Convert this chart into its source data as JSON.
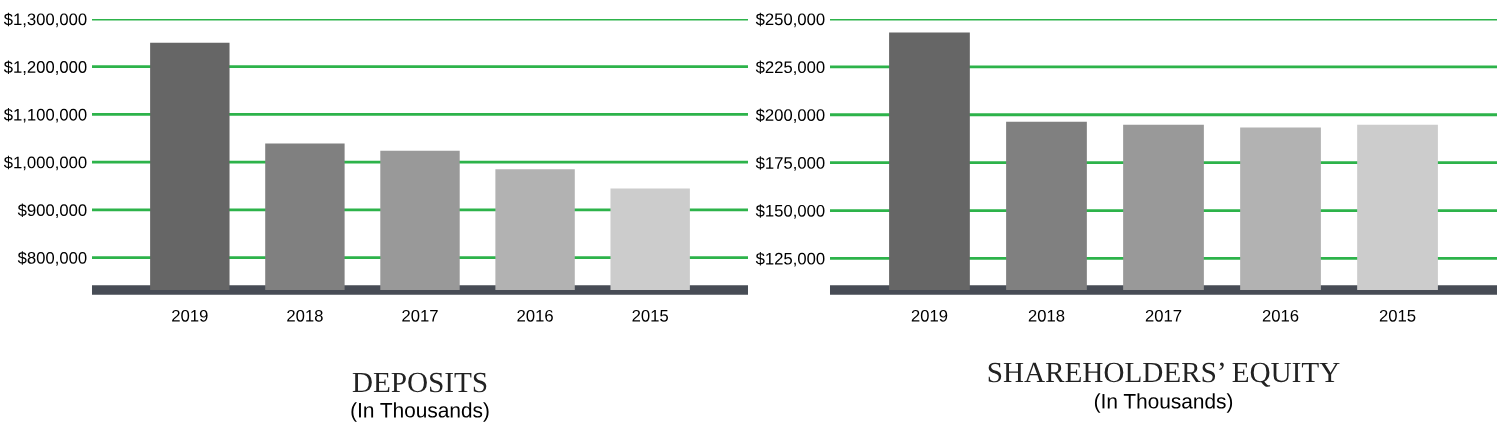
{
  "chart_data": [
    {
      "type": "bar",
      "title": "DEPOSITS",
      "subtitle": "(In Thousands)",
      "categories": [
        "2019",
        "2018",
        "2017",
        "2016",
        "2015"
      ],
      "values": [
        1250000,
        1039000,
        1024000,
        985000,
        945000
      ],
      "colors": [
        "#666666",
        "#808080",
        "#999999",
        "#b2b2b2",
        "#cccccc"
      ],
      "ylim": [
        732000,
        1300000
      ],
      "yticks": [
        {
          "value": 800000,
          "label": "$800,000"
        },
        {
          "value": 900000,
          "label": "$900,000"
        },
        {
          "value": 1000000,
          "label": "$1,000,000"
        },
        {
          "value": 1100000,
          "label": "$1,100,000"
        },
        {
          "value": 1200000,
          "label": "$1,200,000"
        },
        {
          "value": 1300000,
          "label": "$1,300,000"
        }
      ],
      "grid": "y",
      "legend": false
    },
    {
      "type": "bar",
      "title": "SHAREHOLDERS’ EQUITY",
      "subtitle": "(In Thousands)",
      "categories": [
        "2019",
        "2018",
        "2017",
        "2016",
        "2015"
      ],
      "values": [
        243000,
        196300,
        194800,
        193300,
        194800
      ],
      "colors": [
        "#666666",
        "#808080",
        "#999999",
        "#b2b2b2",
        "#cccccc"
      ],
      "ylim": [
        108500,
        250000
      ],
      "yticks": [
        {
          "value": 125000,
          "label": "$125,000"
        },
        {
          "value": 150000,
          "label": "$150,000"
        },
        {
          "value": 175000,
          "label": "$175,000"
        },
        {
          "value": 200000,
          "label": "$200,000"
        },
        {
          "value": 225000,
          "label": "$225,000"
        },
        {
          "value": 250000,
          "label": "$250,000"
        }
      ],
      "grid": "y",
      "legend": false
    }
  ]
}
